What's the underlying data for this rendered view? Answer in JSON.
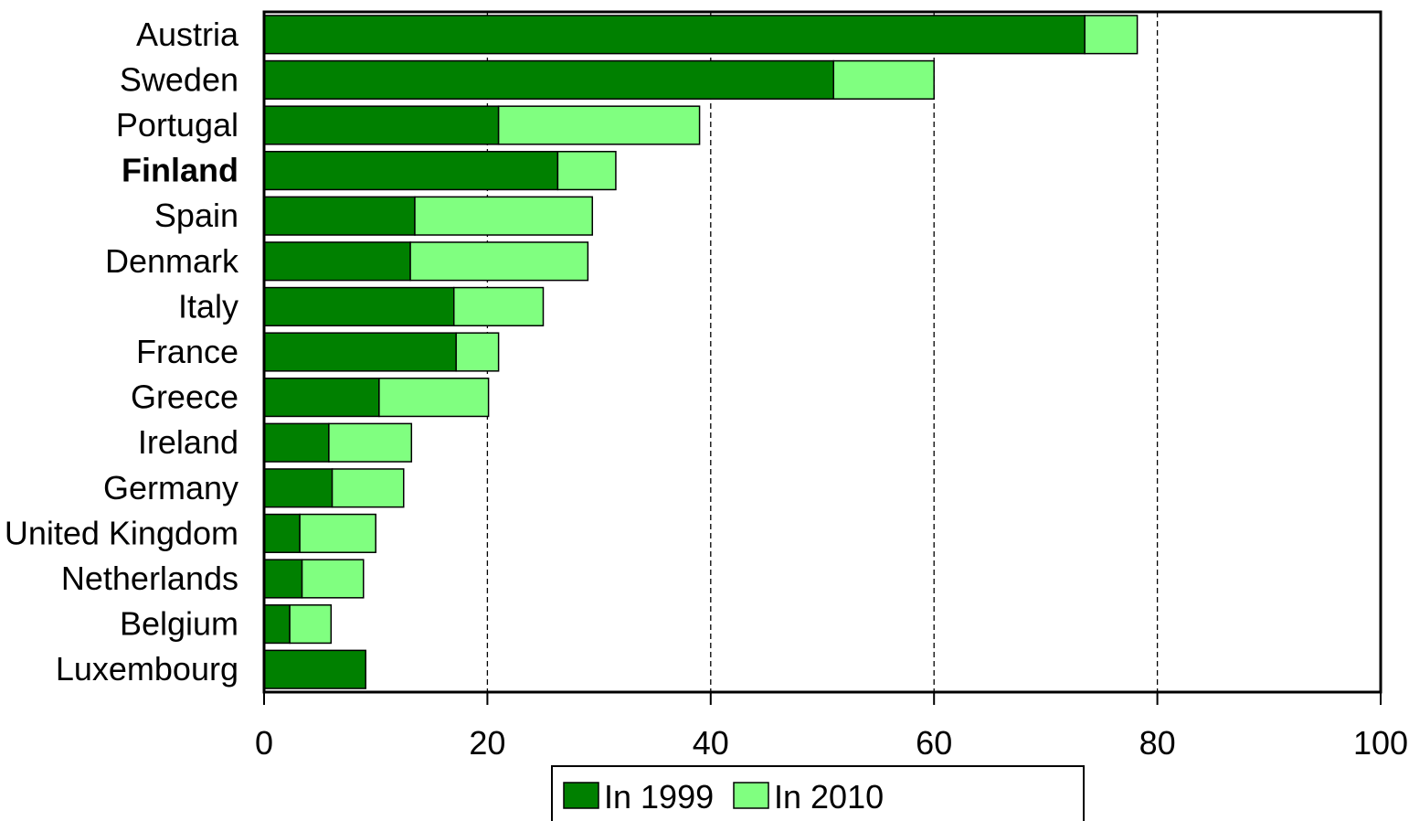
{
  "chart_data": {
    "type": "bar",
    "orientation": "horizontal",
    "stacked": true,
    "title": "",
    "xlabel": "",
    "ylabel": "",
    "xlim": [
      0,
      100
    ],
    "x_ticks": [
      0,
      20,
      40,
      60,
      80,
      100
    ],
    "grid": "vertical dashed",
    "legend_position": "bottom",
    "highlighted_category": "Finland",
    "categories": [
      "Austria",
      "Sweden",
      "Portugal",
      "Finland",
      "Spain",
      "Denmark",
      "Italy",
      "France",
      "Greece",
      "Ireland",
      "Germany",
      "United Kingdom",
      "Netherlands",
      "Belgium",
      "Luxembourg"
    ],
    "series": [
      {
        "name": "In 1999",
        "color": "#008000",
        "values": [
          73.5,
          51,
          21,
          26.3,
          13.5,
          13.1,
          17,
          17.2,
          10.3,
          5.8,
          6.1,
          3.2,
          3.4,
          2.3,
          9.1
        ]
      },
      {
        "name": "In 2010",
        "color": "#80ff80",
        "values": [
          4.7,
          9,
          18,
          5.2,
          15.9,
          15.9,
          8,
          3.8,
          9.8,
          7.4,
          6.4,
          6.8,
          5.5,
          3.7,
          0
        ]
      }
    ]
  }
}
